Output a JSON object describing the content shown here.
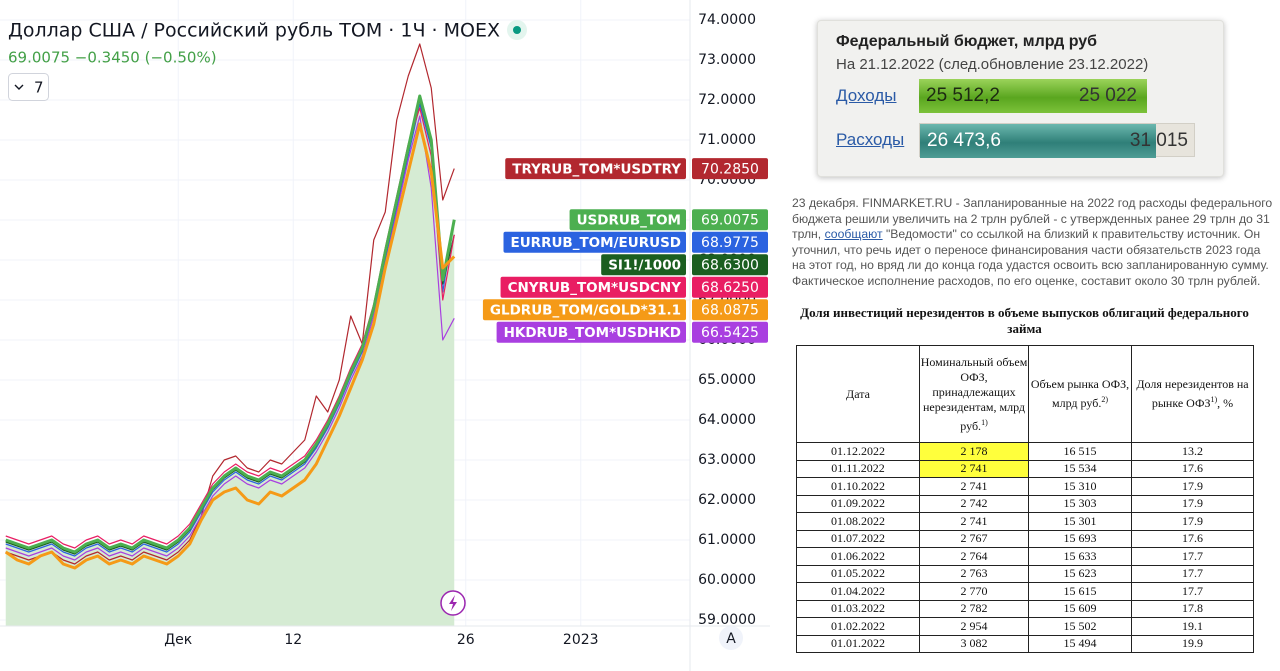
{
  "chart_data": {
    "type": "line",
    "title": "Доллар США / Российский рубль TOM · 1Ч · MOEX",
    "subtitle": "69.0075 −0.3450 (−0.50%)",
    "categories": [
      null,
      null,
      null,
      null,
      null,
      null,
      null,
      null,
      null,
      null,
      null,
      null,
      null,
      null,
      null,
      "Дек",
      null,
      null,
      null,
      null,
      null,
      null,
      null,
      null,
      null,
      "12",
      null,
      null,
      null,
      null,
      null,
      null,
      null,
      null,
      null,
      null,
      null,
      null,
      null,
      null,
      "26",
      null,
      null,
      null,
      null,
      null,
      null,
      null,
      null,
      null,
      "2023",
      null,
      null,
      null,
      null,
      null,
      null,
      null,
      null,
      null
    ],
    "ylim": [
      58.75,
      74.5
    ],
    "yticks": [
      {
        "value": 59,
        "label": "59.0000"
      },
      {
        "value": 60,
        "label": "60.0000"
      },
      {
        "value": 61,
        "label": "61.0000"
      },
      {
        "value": 62,
        "label": "62.0000"
      },
      {
        "value": 63,
        "label": "63.0000"
      },
      {
        "value": 64,
        "label": "64.0000"
      },
      {
        "value": 65,
        "label": "65.0000"
      },
      {
        "value": 66,
        "label": "66.0000"
      },
      {
        "value": 67,
        "label": "67.0000"
      },
      {
        "value": 68,
        "label": "68.0000"
      },
      {
        "value": 69,
        "label": "69.0000"
      },
      {
        "value": 70,
        "label": "70.0000"
      },
      {
        "value": 71,
        "label": "71.0000"
      },
      {
        "value": 72,
        "label": "72.0000"
      },
      {
        "value": 73,
        "label": "73.0000"
      },
      {
        "value": 74,
        "label": "74.0000"
      }
    ],
    "grid": true,
    "area_fill": "#d5ebd3",
    "series": [
      {
        "name": "TRYRUB_TOM*USDTRY",
        "color": "#b2282f",
        "width": 1.2,
        "last": {
          "value": 70.285,
          "label": "70.2850"
        },
        "values": [
          60.7,
          60.6,
          60.5,
          60.6,
          60.7,
          60.5,
          60.4,
          60.6,
          60.7,
          60.5,
          60.6,
          60.5,
          60.7,
          60.6,
          60.5,
          60.7,
          61.0,
          61.6,
          62.6,
          63.0,
          63.1,
          62.8,
          62.7,
          63.0,
          62.9,
          63.2,
          63.5,
          64.6,
          64.2,
          65.0,
          66.6,
          65.9,
          68.5,
          69.2,
          71.5,
          72.6,
          73.4,
          72.3,
          69.5,
          70.285,
          null,
          null,
          null,
          null,
          null,
          null,
          null,
          null,
          null,
          null,
          null,
          null,
          null,
          null,
          null,
          null,
          null,
          null,
          null,
          null
        ]
      },
      {
        "name": "USDRUB_TOM",
        "color": "#4caf50",
        "width": 3,
        "area": true,
        "last": {
          "value": 69.0075,
          "label": "69.0075"
        },
        "values": [
          61.0,
          60.9,
          60.8,
          60.9,
          61.0,
          60.8,
          60.7,
          60.9,
          61.0,
          60.8,
          60.9,
          60.8,
          61.0,
          60.9,
          60.8,
          61.0,
          61.3,
          61.8,
          62.3,
          62.6,
          62.8,
          62.6,
          62.5,
          62.7,
          62.6,
          62.8,
          63.0,
          63.4,
          63.9,
          64.5,
          65.2,
          65.8,
          66.8,
          68.2,
          69.5,
          70.8,
          72.1,
          71.0,
          67.5,
          69.0075,
          null,
          null,
          null,
          null,
          null,
          null,
          null,
          null,
          null,
          null,
          null,
          null,
          null,
          null,
          null,
          null,
          null,
          null,
          null,
          null
        ]
      },
      {
        "name": "EURRUB_TOM/EURUSD",
        "color": "#2b63e0",
        "width": 1.2,
        "last": {
          "value": 68.9775,
          "label": "68.9775"
        },
        "values": [
          60.9,
          60.8,
          60.7,
          60.8,
          60.9,
          60.7,
          60.6,
          60.8,
          60.9,
          60.7,
          60.8,
          60.7,
          60.9,
          60.8,
          60.7,
          60.9,
          61.2,
          61.7,
          62.2,
          62.5,
          62.7,
          62.5,
          62.4,
          62.6,
          62.5,
          62.7,
          62.9,
          63.3,
          63.8,
          64.4,
          65.1,
          65.7,
          66.7,
          68.0,
          69.3,
          70.6,
          71.9,
          70.8,
          67.2,
          68.9775,
          null,
          null,
          null,
          null,
          null,
          null,
          null,
          null,
          null,
          null,
          null,
          null,
          null,
          null,
          null,
          null,
          null,
          null,
          null,
          null
        ]
      },
      {
        "name": "SI1!/1000",
        "color": "#1b5e20",
        "width": 1.2,
        "last": {
          "value": 68.63,
          "label": "68.6300"
        },
        "values": [
          60.95,
          60.85,
          60.75,
          60.85,
          60.95,
          60.75,
          60.65,
          60.85,
          60.95,
          60.75,
          60.85,
          60.75,
          60.95,
          60.85,
          60.75,
          60.95,
          61.25,
          61.75,
          62.25,
          62.55,
          62.75,
          62.55,
          62.45,
          62.65,
          62.55,
          62.75,
          62.95,
          63.35,
          63.85,
          64.45,
          65.15,
          65.75,
          66.75,
          68.1,
          69.4,
          70.7,
          72.0,
          70.9,
          67.4,
          68.63,
          null,
          null,
          null,
          null,
          null,
          null,
          null,
          null,
          null,
          null,
          null,
          null,
          null,
          null,
          null,
          null,
          null,
          null,
          null,
          null
        ]
      },
      {
        "name": "CNYRUB_TOM*USDCNY",
        "color": "#e91e63",
        "width": 1.2,
        "last": {
          "value": 68.625,
          "label": "68.6250"
        },
        "values": [
          61.1,
          61.0,
          60.9,
          61.0,
          61.1,
          60.9,
          60.8,
          61.0,
          61.1,
          60.9,
          61.0,
          60.9,
          61.1,
          61.0,
          60.9,
          61.1,
          61.4,
          61.9,
          62.4,
          62.7,
          62.9,
          62.7,
          62.6,
          62.8,
          62.7,
          62.9,
          63.1,
          63.5,
          64.0,
          64.6,
          65.3,
          65.9,
          66.9,
          68.3,
          69.6,
          70.9,
          71.8,
          70.6,
          67.0,
          68.625,
          null,
          null,
          null,
          null,
          null,
          null,
          null,
          null,
          null,
          null,
          null,
          null,
          null,
          null,
          null,
          null,
          null,
          null,
          null,
          null
        ]
      },
      {
        "name": "GLDRUB_TOM/GOLD*31.1",
        "color": "#f59a17",
        "width": 3,
        "last": {
          "value": 68.0875,
          "label": "68.0875"
        },
        "values": [
          60.7,
          60.5,
          60.4,
          60.6,
          60.7,
          60.4,
          60.3,
          60.5,
          60.6,
          60.4,
          60.5,
          60.4,
          60.6,
          60.5,
          60.4,
          60.6,
          60.9,
          61.5,
          62.0,
          62.2,
          62.3,
          62.0,
          61.9,
          62.2,
          62.1,
          62.3,
          62.5,
          62.9,
          63.5,
          64.1,
          64.8,
          65.5,
          66.4,
          67.8,
          69.0,
          70.2,
          71.4,
          70.2,
          67.8,
          68.0875,
          null,
          null,
          null,
          null,
          null,
          null,
          null,
          null,
          null,
          null,
          null,
          null,
          null,
          null,
          null,
          null,
          null,
          null,
          null,
          null
        ]
      },
      {
        "name": "HKDRUB_TOM*USDHKD",
        "color": "#a93fe0",
        "width": 1.2,
        "last": {
          "value": 66.5425,
          "label": "66.5425"
        },
        "values": [
          60.8,
          60.7,
          60.6,
          60.7,
          60.8,
          60.6,
          60.5,
          60.7,
          60.8,
          60.6,
          60.7,
          60.6,
          60.8,
          60.7,
          60.6,
          60.8,
          61.1,
          61.6,
          62.1,
          62.4,
          62.6,
          62.4,
          62.3,
          62.5,
          62.4,
          62.6,
          62.8,
          63.2,
          63.7,
          64.3,
          65.0,
          65.6,
          66.6,
          67.9,
          69.2,
          70.5,
          71.6,
          69.8,
          66.0,
          66.5425,
          null,
          null,
          null,
          null,
          null,
          null,
          null,
          null,
          null,
          null,
          null,
          null,
          null,
          null,
          null,
          null,
          null,
          null,
          null,
          null
        ]
      }
    ]
  },
  "toolbar": {
    "indicators": "7",
    "scale_button": "A"
  },
  "budget": {
    "title": "Федеральный бюджет, млрд руб",
    "subtitle": "На 21.12.2022 (след.обновление 23.12.2022)",
    "rows": [
      {
        "label": "Доходы",
        "actual": "25 512,2",
        "plan": "25 022"
      },
      {
        "label": "Расходы",
        "actual": "26 473,6",
        "plan": "31 015"
      }
    ]
  },
  "news": {
    "before": "23 декабря. FINMARKET.RU - Запланированные на 2022 год расходы федерального бюджета решили увеличить на 2 трлн рублей - с утвержденных ранее 29 трлн до 31 трлн, ",
    "link": "сообщают",
    "after": " \"Ведомости\" со ссылкой на близкий к правительству источник. Он уточнил, что речь идет о переносе финансирования части обязательств 2023 года на этот год, но вряд ли до конца года удастся освоить всю запланированную сумму. Фактическое исполнение расходов, по его оценке, составит около 30 трлн рублей."
  },
  "table": {
    "title": "Доля инвестиций нерезидентов в объеме выпусков облигаций федерального займа",
    "headers": [
      {
        "text": "Дата"
      },
      {
        "text": "Номинальный объем ОФЗ, принадлежащих нерезидентам, млрд руб.",
        "sup": "1)"
      },
      {
        "text": "Объем рынка ОФЗ, млрд руб.",
        "sup": "2)"
      },
      {
        "text": "Доля нерезидентов на рынке ОФЗ",
        "sup": "1)",
        "after": ", %"
      }
    ],
    "rows": [
      [
        "01.12.2022",
        "2 178",
        "16 515",
        "13.2"
      ],
      [
        "01.11.2022",
        "2 741",
        "15 534",
        "17.6"
      ],
      [
        "01.10.2022",
        "2 741",
        "15 310",
        "17.9"
      ],
      [
        "01.09.2022",
        "2 742",
        "15 303",
        "17.9"
      ],
      [
        "01.08.2022",
        "2 741",
        "15 301",
        "17.9"
      ],
      [
        "01.07.2022",
        "2 767",
        "15 693",
        "17.6"
      ],
      [
        "01.06.2022",
        "2 764",
        "15 633",
        "17.7"
      ],
      [
        "01.05.2022",
        "2 763",
        "15 623",
        "17.7"
      ],
      [
        "01.04.2022",
        "2 770",
        "15 615",
        "17.7"
      ],
      [
        "01.03.2022",
        "2 782",
        "15 609",
        "17.8"
      ],
      [
        "01.02.2022",
        "2 954",
        "15 502",
        "19.1"
      ],
      [
        "01.01.2022",
        "3 082",
        "15 494",
        "19.9"
      ]
    ]
  }
}
